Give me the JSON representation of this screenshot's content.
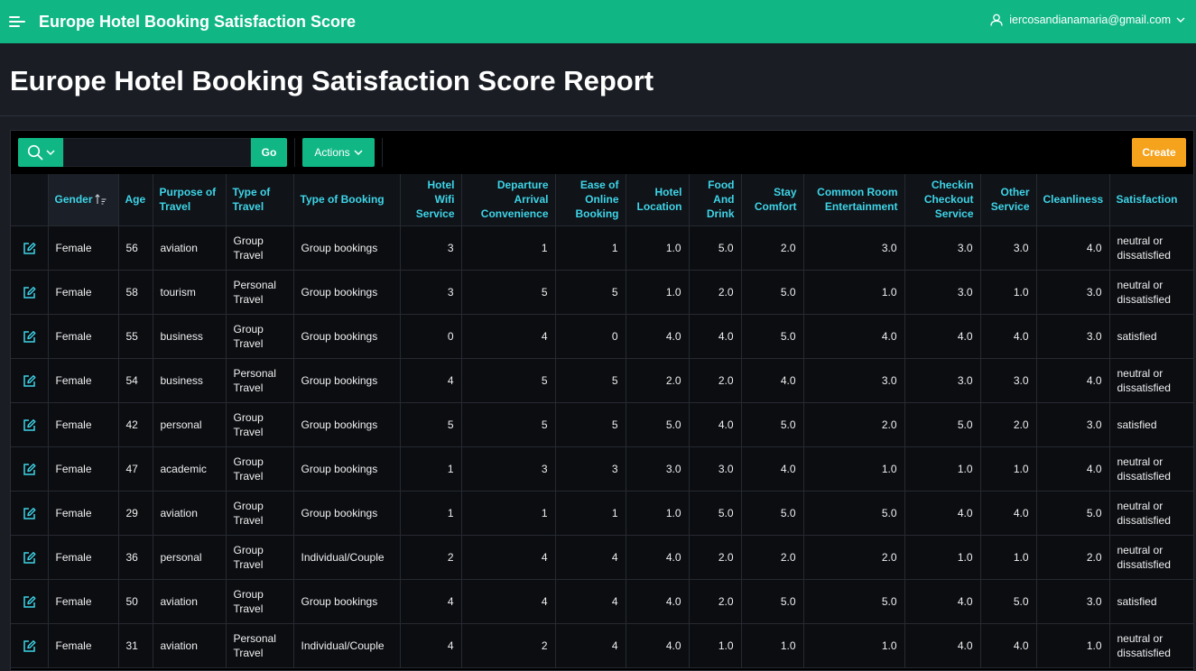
{
  "app": {
    "title": "Europe Hotel Booking Satisfaction Score",
    "menu_icon": "hamburger-icon",
    "user_email": "iercosandianamaria@gmail.com",
    "user_icon": "user-icon"
  },
  "page": {
    "title": "Europe Hotel Booking Satisfaction Score Report"
  },
  "toolbar": {
    "search_value": "",
    "search_placeholder": "",
    "go_label": "Go",
    "actions_label": "Actions",
    "create_label": "Create"
  },
  "colors": {
    "header_bar": "#10b785",
    "column_header_text": "#3ed5e8",
    "create_button": "#f5a21c"
  },
  "table": {
    "sorted_column": "Gender",
    "columns": [
      {
        "label": "",
        "align": "c"
      },
      {
        "label": "Gender",
        "align": "l"
      },
      {
        "label": "Age",
        "align": "l"
      },
      {
        "label": "Purpose of Travel",
        "align": "l"
      },
      {
        "label": "Type of Travel",
        "align": "l"
      },
      {
        "label": "Type of Booking",
        "align": "l"
      },
      {
        "label": "Hotel Wifi Service",
        "align": "r"
      },
      {
        "label": "Departure Arrival Convenience",
        "align": "r"
      },
      {
        "label": "Ease of Online Booking",
        "align": "r"
      },
      {
        "label": "Hotel Location",
        "align": "r"
      },
      {
        "label": "Food And Drink",
        "align": "r"
      },
      {
        "label": "Stay Comfort",
        "align": "r"
      },
      {
        "label": "Common Room Entertainment",
        "align": "r"
      },
      {
        "label": "Checkin Checkout Service",
        "align": "r"
      },
      {
        "label": "Other Service",
        "align": "r"
      },
      {
        "label": "Cleanliness",
        "align": "r"
      },
      {
        "label": "Satisfaction",
        "align": "l"
      }
    ],
    "rows": [
      [
        "Female",
        "56",
        "aviation",
        "Group Travel",
        "Group bookings",
        "3",
        "1",
        "1",
        "1.0",
        "5.0",
        "2.0",
        "3.0",
        "3.0",
        "3.0",
        "4.0",
        "neutral or dissatisfied"
      ],
      [
        "Female",
        "58",
        "tourism",
        "Personal Travel",
        "Group bookings",
        "3",
        "5",
        "5",
        "1.0",
        "2.0",
        "5.0",
        "1.0",
        "3.0",
        "1.0",
        "3.0",
        "neutral or dissatisfied"
      ],
      [
        "Female",
        "55",
        "business",
        "Group Travel",
        "Group bookings",
        "0",
        "4",
        "0",
        "4.0",
        "4.0",
        "5.0",
        "4.0",
        "4.0",
        "4.0",
        "3.0",
        "satisfied"
      ],
      [
        "Female",
        "54",
        "business",
        "Personal Travel",
        "Group bookings",
        "4",
        "5",
        "5",
        "2.0",
        "2.0",
        "4.0",
        "3.0",
        "3.0",
        "3.0",
        "4.0",
        "neutral or dissatisfied"
      ],
      [
        "Female",
        "42",
        "personal",
        "Group Travel",
        "Group bookings",
        "5",
        "5",
        "5",
        "5.0",
        "4.0",
        "5.0",
        "2.0",
        "5.0",
        "2.0",
        "3.0",
        "satisfied"
      ],
      [
        "Female",
        "47",
        "academic",
        "Group Travel",
        "Group bookings",
        "1",
        "3",
        "3",
        "3.0",
        "3.0",
        "4.0",
        "1.0",
        "1.0",
        "1.0",
        "4.0",
        "neutral or dissatisfied"
      ],
      [
        "Female",
        "29",
        "aviation",
        "Group Travel",
        "Group bookings",
        "1",
        "1",
        "1",
        "1.0",
        "5.0",
        "5.0",
        "5.0",
        "4.0",
        "4.0",
        "5.0",
        "neutral or dissatisfied"
      ],
      [
        "Female",
        "36",
        "personal",
        "Group Travel",
        "Individual/Couple",
        "2",
        "4",
        "4",
        "4.0",
        "2.0",
        "2.0",
        "2.0",
        "1.0",
        "1.0",
        "2.0",
        "neutral or dissatisfied"
      ],
      [
        "Female",
        "50",
        "aviation",
        "Group Travel",
        "Group bookings",
        "4",
        "4",
        "4",
        "4.0",
        "2.0",
        "5.0",
        "5.0",
        "4.0",
        "5.0",
        "3.0",
        "satisfied"
      ],
      [
        "Female",
        "31",
        "aviation",
        "Personal Travel",
        "Individual/Couple",
        "4",
        "2",
        "4",
        "4.0",
        "1.0",
        "1.0",
        "1.0",
        "4.0",
        "4.0",
        "1.0",
        "neutral or dissatisfied"
      ]
    ]
  }
}
